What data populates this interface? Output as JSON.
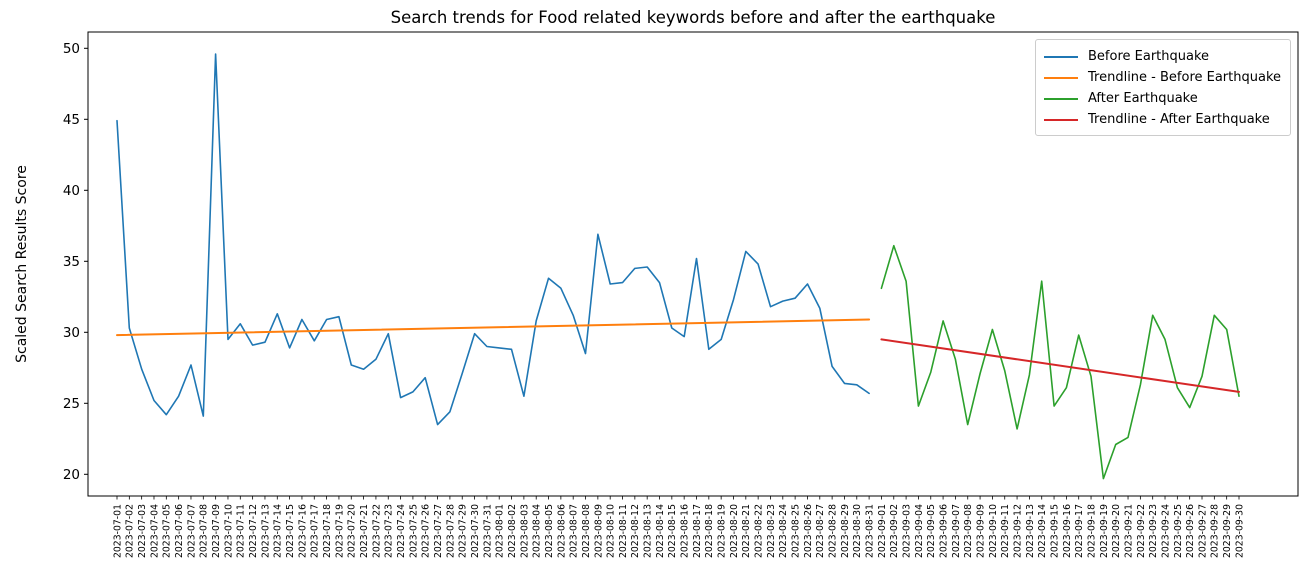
{
  "figure": {
    "title": "Search trends for Food related keywords before and after the earthquake",
    "ylabel": "Scaled Search Results Score",
    "background_color": "#ffffff"
  },
  "legend": {
    "position": "upper right",
    "items": [
      {
        "label": "Before Earthquake",
        "color": "#1f77b4"
      },
      {
        "label": "Trendline - Before Earthquake",
        "color": "#ff7f0e"
      },
      {
        "label": "After Earthquake",
        "color": "#2ca02c"
      },
      {
        "label": "Trendline - After Earthquake",
        "color": "#d62728"
      }
    ]
  },
  "chart_data": {
    "type": "line",
    "title": "Search trends for Food related keywords before and after the earthquake",
    "xlabel": "",
    "ylabel": "Scaled Search Results Score",
    "ylim": [
      18.5,
      51.1
    ],
    "yticks": [
      20,
      25,
      30,
      35,
      40,
      45,
      50
    ],
    "grid": false,
    "legend_position": "upper right",
    "x": [
      "2023-07-01",
      "2023-07-02",
      "2023-07-03",
      "2023-07-04",
      "2023-07-05",
      "2023-07-06",
      "2023-07-07",
      "2023-07-08",
      "2023-07-09",
      "2023-07-10",
      "2023-07-11",
      "2023-07-12",
      "2023-07-13",
      "2023-07-14",
      "2023-07-15",
      "2023-07-16",
      "2023-07-17",
      "2023-07-18",
      "2023-07-19",
      "2023-07-20",
      "2023-07-21",
      "2023-07-22",
      "2023-07-23",
      "2023-07-24",
      "2023-07-25",
      "2023-07-26",
      "2023-07-27",
      "2023-07-28",
      "2023-07-29",
      "2023-07-30",
      "2023-07-31",
      "2023-08-01",
      "2023-08-02",
      "2023-08-03",
      "2023-08-04",
      "2023-08-05",
      "2023-08-06",
      "2023-08-07",
      "2023-08-08",
      "2023-08-09",
      "2023-08-10",
      "2023-08-11",
      "2023-08-12",
      "2023-08-13",
      "2023-08-14",
      "2023-08-15",
      "2023-08-16",
      "2023-08-17",
      "2023-08-18",
      "2023-08-19",
      "2023-08-20",
      "2023-08-21",
      "2023-08-22",
      "2023-08-23",
      "2023-08-24",
      "2023-08-25",
      "2023-08-26",
      "2023-08-27",
      "2023-08-28",
      "2023-08-29",
      "2023-08-30",
      "2023-08-31",
      "2023-09-01",
      "2023-09-02",
      "2023-09-03",
      "2023-09-04",
      "2023-09-05",
      "2023-09-06",
      "2023-09-07",
      "2023-09-08",
      "2023-09-09",
      "2023-09-10",
      "2023-09-11",
      "2023-09-12",
      "2023-09-13",
      "2023-09-14",
      "2023-09-15",
      "2023-09-16",
      "2023-09-17",
      "2023-09-18",
      "2023-09-19",
      "2023-09-20",
      "2023-09-21",
      "2023-09-22",
      "2023-09-23",
      "2023-09-24",
      "2023-09-25",
      "2023-09-26",
      "2023-09-27",
      "2023-09-28",
      "2023-09-29",
      "2023-09-30"
    ],
    "series": [
      {
        "id": "before-earthquake",
        "name": "Before Earthquake",
        "color": "#1f77b4",
        "trendline": false,
        "x_start_index": 0,
        "x_range": [
          "2023-07-01",
          "2023-08-31"
        ],
        "values": [
          44.9,
          30.3,
          27.4,
          25.2,
          24.2,
          25.5,
          27.7,
          24.1,
          49.6,
          29.5,
          30.6,
          29.1,
          29.3,
          31.3,
          28.9,
          30.9,
          29.4,
          30.9,
          31.1,
          27.7,
          27.4,
          28.1,
          29.9,
          25.4,
          25.8,
          26.8,
          23.5,
          24.4,
          27.1,
          29.9,
          29.0,
          28.9,
          28.8,
          25.5,
          30.8,
          33.8,
          33.1,
          31.2,
          28.5,
          36.9,
          33.4,
          33.5,
          34.5,
          34.6,
          33.5,
          30.3,
          29.7,
          35.2,
          28.8,
          29.5,
          32.3,
          35.7,
          34.8,
          31.8,
          32.2,
          32.4,
          33.4,
          31.7,
          27.6,
          26.4,
          26.3,
          25.7
        ]
      },
      {
        "id": "trendline-before-earthquake",
        "name": "Trendline - Before Earthquake",
        "color": "#ff7f0e",
        "trendline": true,
        "x_start_index": 0,
        "x_span": 62,
        "x_range": [
          "2023-07-01",
          "2023-08-31"
        ],
        "values": [
          29.8,
          30.9
        ]
      },
      {
        "id": "after-earthquake",
        "name": "After Earthquake",
        "color": "#2ca02c",
        "trendline": false,
        "x_start_index": 62,
        "x_range": [
          "2023-09-01",
          "2023-09-30"
        ],
        "values": [
          33.1,
          36.1,
          33.6,
          24.8,
          27.2,
          30.8,
          28.1,
          23.5,
          27.1,
          30.2,
          27.3,
          23.2,
          27.0,
          33.6,
          24.8,
          26.1,
          29.8,
          26.9,
          19.7,
          22.1,
          22.6,
          26.3,
          31.2,
          29.5,
          26.1,
          24.7,
          26.9,
          31.2,
          30.2,
          25.5
        ]
      },
      {
        "id": "trendline-after-earthquake",
        "name": "Trendline - After Earthquake",
        "color": "#d62728",
        "trendline": true,
        "x_start_index": 62,
        "x_span": 30,
        "x_range": [
          "2023-09-01",
          "2023-09-30"
        ],
        "values": [
          29.5,
          25.8
        ]
      }
    ]
  }
}
